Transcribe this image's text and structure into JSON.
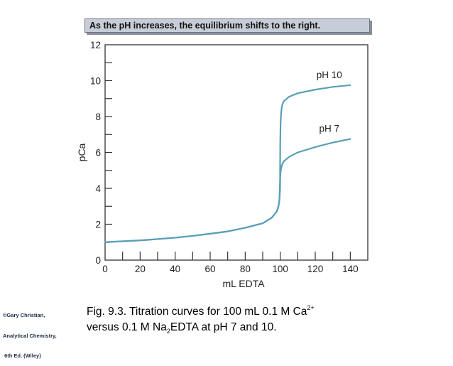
{
  "banner": {
    "text": "As the pH increases, the equilibrium shifts to the right."
  },
  "credit": {
    "lines": [
      "©Gary Christian,",
      "Analytical Chemistry,",
      " 6th Ed. (Wiley)"
    ]
  },
  "caption": {
    "line1_pre": "Fig. 9.3. Titration curves for 100 mL 0.1 M Ca",
    "line1_sup": "2+",
    "line2_pre": "versus 0.1 M Na",
    "line2_sub": "2",
    "line2_post": "EDTA at pH 7 and 10."
  },
  "chart_data": {
    "type": "line",
    "title": "",
    "xlabel": "mL EDTA",
    "ylabel": "pCa",
    "xlim": [
      0,
      150
    ],
    "ylim": [
      0,
      12
    ],
    "xticks": [
      0,
      20,
      40,
      60,
      80,
      100,
      120,
      140
    ],
    "yticks": [
      0,
      2,
      4,
      6,
      8,
      10,
      12
    ],
    "line_color": "#5a9fb8",
    "series": [
      {
        "name": "pH 10",
        "x": [
          0,
          10,
          20,
          30,
          40,
          50,
          60,
          70,
          80,
          90,
          95,
          98,
          99,
          99.5,
          99.9,
          100,
          100.2,
          100.5,
          101,
          102,
          105,
          110,
          120,
          130,
          140
        ],
        "y": [
          1.0,
          1.05,
          1.1,
          1.17,
          1.25,
          1.35,
          1.47,
          1.6,
          1.8,
          2.05,
          2.35,
          2.7,
          3.0,
          3.3,
          4.5,
          6.5,
          7.6,
          8.2,
          8.6,
          8.85,
          9.1,
          9.3,
          9.5,
          9.65,
          9.75
        ]
      },
      {
        "name": "pH 7",
        "x": [
          0,
          10,
          20,
          30,
          40,
          50,
          60,
          70,
          80,
          90,
          95,
          98,
          99,
          99.5,
          99.9,
          100,
          100.2,
          100.5,
          101,
          102,
          105,
          110,
          120,
          130,
          140
        ],
        "y": [
          1.0,
          1.05,
          1.1,
          1.17,
          1.25,
          1.35,
          1.47,
          1.6,
          1.8,
          2.05,
          2.35,
          2.7,
          3.0,
          3.3,
          3.9,
          4.6,
          4.9,
          5.1,
          5.3,
          5.5,
          5.75,
          6.0,
          6.3,
          6.55,
          6.75
        ]
      }
    ],
    "grid": false,
    "legend": "inline labels"
  }
}
